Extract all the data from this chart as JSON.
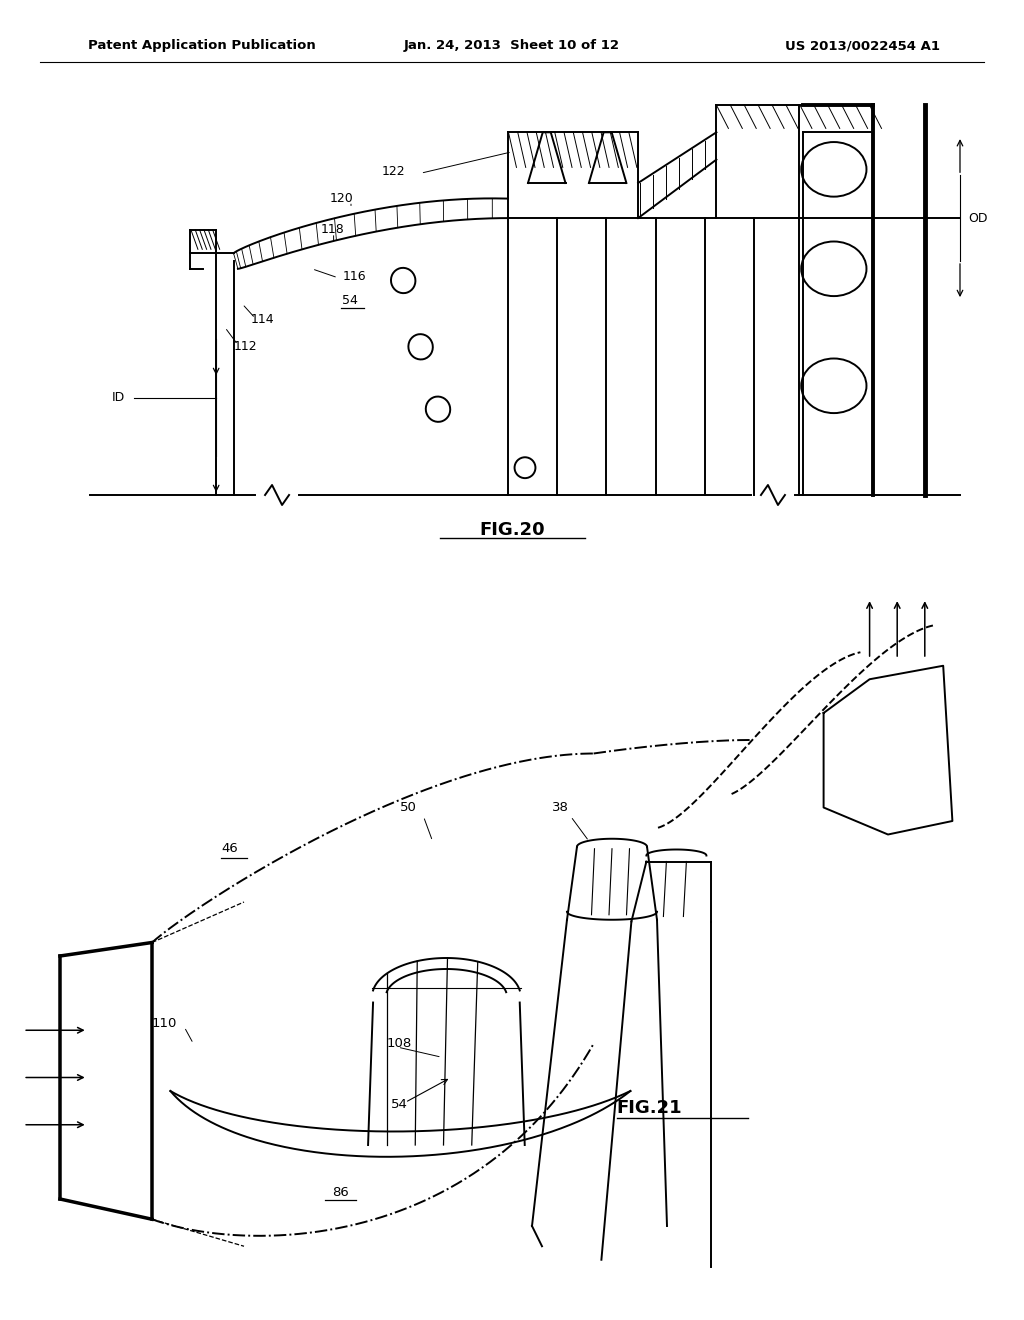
{
  "header_left": "Patent Application Publication",
  "header_center": "Jan. 24, 2013  Sheet 10 of 12",
  "header_right": "US 2013/0022454 A1",
  "fig20_caption": "FIG.20",
  "fig21_caption": "FIG.21",
  "bg": "#ffffff",
  "lc": "#000000"
}
